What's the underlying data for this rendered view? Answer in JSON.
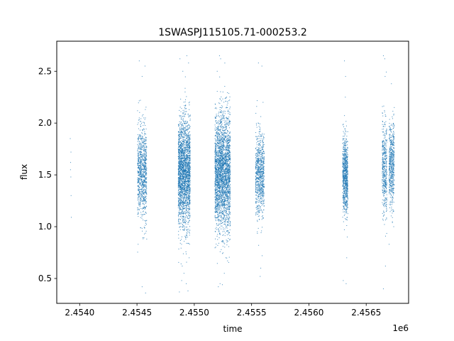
{
  "chart_data": {
    "type": "scatter",
    "title": "1SWASPJ115105.71-000253.2",
    "xlabel": "time",
    "ylabel": "flux",
    "x_offset_label": "1e6",
    "x_scale": 1000000,
    "xlim": [
      2453800,
      2456870
    ],
    "ylim": [
      0.26,
      2.79
    ],
    "xticks": [
      2454000,
      2454500,
      2455000,
      2455500,
      2456000,
      2456500
    ],
    "xtick_labels": [
      "2.4540",
      "2.4545",
      "2.4550",
      "2.4555",
      "2.4560",
      "2.4565"
    ],
    "yticks": [
      0.5,
      1.0,
      1.5,
      2.0,
      2.5
    ],
    "ytick_labels": [
      "0.5",
      "1.0",
      "1.5",
      "2.0",
      "2.5"
    ],
    "grid": false,
    "legend": "none",
    "point_color": "#1f77b4",
    "series": [
      {
        "points": [
          [
            2453918,
            1.85
          ],
          [
            2453921,
            1.62
          ],
          [
            2453923,
            1.48
          ],
          [
            2453925,
            1.3
          ],
          [
            2453927,
            1.09
          ],
          [
            2453920,
            1.55
          ],
          [
            2453924,
            1.72
          ],
          [
            2454520,
            2.6
          ],
          [
            2454545,
            2.45
          ],
          [
            2454510,
            0.83
          ],
          [
            2454545,
            0.42
          ],
          [
            2454570,
            2.55
          ],
          [
            2454575,
            0.36
          ],
          [
            2454585,
            0.88
          ],
          [
            2454530,
            2.22
          ],
          [
            2454560,
            2.05
          ],
          [
            2454565,
            0.93
          ],
          [
            2454875,
            2.62
          ],
          [
            2454900,
            2.5
          ],
          [
            2454935,
            2.65
          ],
          [
            2454950,
            2.58
          ],
          [
            2454870,
            0.37
          ],
          [
            2454890,
            0.48
          ],
          [
            2454910,
            0.55
          ],
          [
            2454930,
            0.45
          ],
          [
            2454945,
            0.38
          ],
          [
            2454955,
            0.7
          ],
          [
            2454920,
            2.3
          ],
          [
            2454895,
            0.62
          ],
          [
            2455200,
            2.5
          ],
          [
            2455220,
            2.65
          ],
          [
            2455230,
            2.62
          ],
          [
            2455250,
            2.3
          ],
          [
            2455210,
            0.42
          ],
          [
            2455225,
            0.45
          ],
          [
            2455245,
            0.44
          ],
          [
            2455262,
            0.55
          ],
          [
            2455275,
            0.7
          ],
          [
            2455190,
            2.05
          ],
          [
            2455300,
            1.98
          ],
          [
            2455285,
            0.85
          ],
          [
            2455560,
            2.58
          ],
          [
            2455590,
            2.55
          ],
          [
            2455580,
            0.6
          ],
          [
            2455592,
            0.72
          ],
          [
            2455600,
            2.2
          ],
          [
            2455550,
            0.95
          ],
          [
            2455575,
            0.52
          ],
          [
            2456310,
            2.6
          ],
          [
            2456320,
            2.45
          ],
          [
            2456300,
            0.48
          ],
          [
            2456325,
            0.45
          ],
          [
            2456335,
            0.9
          ],
          [
            2456318,
            2.25
          ],
          [
            2456330,
            0.7
          ],
          [
            2456650,
            2.65
          ],
          [
            2456662,
            2.62
          ],
          [
            2456665,
            2.45
          ],
          [
            2456650,
            0.4
          ],
          [
            2456668,
            0.62
          ],
          [
            2456700,
            0.83
          ],
          [
            2456720,
            2.38
          ],
          [
            2456745,
            2.15
          ],
          [
            2456740,
            1.0
          ]
        ]
      }
    ],
    "clusters": [
      {
        "x_range": [
          2454505,
          2454585
        ],
        "center": 1.52,
        "spread": 0.22,
        "n": 900
      },
      {
        "x_range": [
          2454860,
          2454965
        ],
        "center": 1.52,
        "spread": 0.26,
        "n": 2300
      },
      {
        "x_range": [
          2455180,
          2455315
        ],
        "center": 1.52,
        "spread": 0.28,
        "n": 2700
      },
      {
        "x_range": [
          2455535,
          2455610
        ],
        "center": 1.5,
        "spread": 0.2,
        "n": 800
      },
      {
        "x_range": [
          2456295,
          2456340
        ],
        "center": 1.5,
        "spread": 0.18,
        "n": 800
      },
      {
        "x_range": [
          2456640,
          2456680
        ],
        "center": 1.55,
        "spread": 0.22,
        "n": 450
      },
      {
        "x_range": [
          2456700,
          2456745
        ],
        "center": 1.6,
        "spread": 0.2,
        "n": 550
      }
    ]
  }
}
